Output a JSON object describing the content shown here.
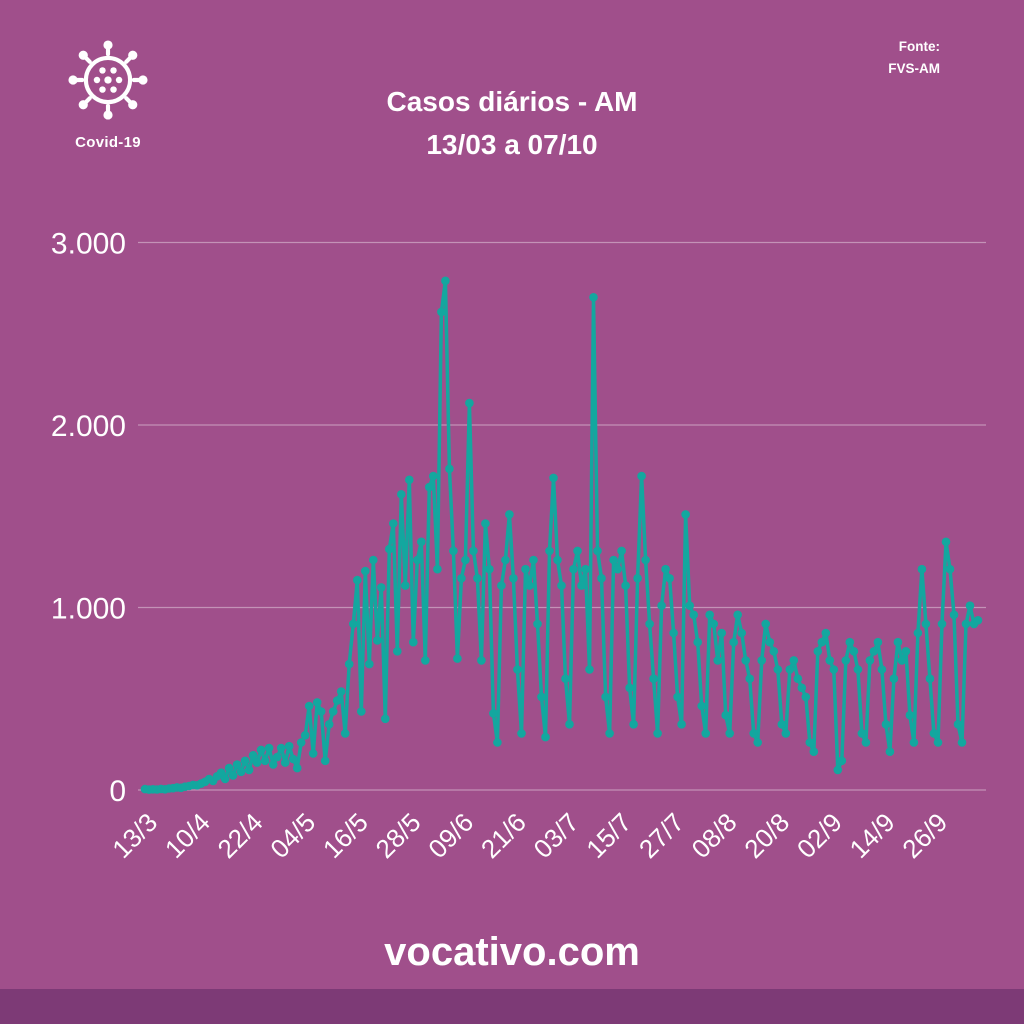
{
  "header": {
    "logo_label": "Covid-19",
    "title_line1": "Casos diários - AM",
    "title_line2": "13/03 a 07/10",
    "source_label": "Fonte:",
    "source_value": "FVS-AM"
  },
  "footer": {
    "site": "vocativo.com"
  },
  "colors": {
    "background": "#a04f8b",
    "footer_bar": "#7d3a76",
    "line": "#13a79f",
    "text": "#ffffff",
    "grid": "rgba(255,255,255,0.38)"
  },
  "chart_data": {
    "type": "line",
    "title": "Casos diários - AM",
    "subtitle": "13/03 a 07/10",
    "xlabel": "",
    "ylabel": "",
    "legend": "none",
    "grid": "horizontal",
    "period_start": "13/3",
    "period_end": "7/10",
    "ylim": [
      0,
      3000
    ],
    "y_ticks": [
      0,
      1000,
      2000,
      3000
    ],
    "y_tick_labels": [
      "0",
      "1.000",
      "2.000",
      "3.000"
    ],
    "x_tick_labels": [
      "13/3",
      "10/4",
      "22/4",
      "04/5",
      "16/5",
      "28/5",
      "09/6",
      "21/6",
      "03/7",
      "15/7",
      "27/7",
      "08/8",
      "20/8",
      "02/9",
      "14/9",
      "26/9"
    ],
    "x_tick_day_indices": [
      0,
      28,
      40,
      52,
      64,
      76,
      88,
      100,
      112,
      124,
      136,
      148,
      160,
      173,
      185,
      197
    ],
    "series_name": "Casos diários",
    "values": [
      5,
      2,
      4,
      3,
      6,
      4,
      8,
      10,
      14,
      12,
      18,
      22,
      28,
      26,
      35,
      45,
      60,
      50,
      75,
      95,
      60,
      120,
      80,
      140,
      100,
      160,
      110,
      190,
      150,
      220,
      160,
      230,
      140,
      180,
      230,
      150,
      240,
      170,
      120,
      260,
      300,
      460,
      200,
      480,
      430,
      160,
      360,
      430,
      490,
      540,
      310,
      690,
      910,
      1150,
      430,
      1200,
      690,
      1260,
      820,
      1110,
      390,
      1320,
      1460,
      760,
      1620,
      1120,
      1700,
      810,
      1260,
      1360,
      710,
      1660,
      1720,
      1210,
      2620,
      2790,
      1760,
      1310,
      720,
      1160,
      1260,
      2120,
      1310,
      1160,
      710,
      1460,
      1210,
      420,
      260,
      1120,
      1260,
      1510,
      1160,
      660,
      310,
      1210,
      1120,
      1260,
      910,
      510,
      290,
      1310,
      1710,
      1260,
      1120,
      610,
      360,
      1210,
      1310,
      1120,
      1210,
      660,
      2700,
      1310,
      1160,
      510,
      310,
      1260,
      1210,
      1310,
      1120,
      560,
      360,
      1160,
      1720,
      1260,
      910,
      610,
      310,
      1010,
      1210,
      1160,
      860,
      510,
      360,
      1510,
      1010,
      960,
      810,
      460,
      310,
      960,
      910,
      710,
      860,
      410,
      310,
      810,
      960,
      860,
      710,
      610,
      310,
      260,
      710,
      910,
      810,
      760,
      660,
      360,
      310,
      660,
      710,
      610,
      560,
      510,
      260,
      210,
      760,
      810,
      860,
      710,
      660,
      110,
      160,
      710,
      810,
      760,
      660,
      310,
      260,
      710,
      760,
      810,
      660,
      360,
      210,
      610,
      810,
      710,
      760,
      410,
      260,
      860,
      1210,
      910,
      610,
      310,
      260,
      910,
      1360,
      1210,
      960,
      360,
      260,
      910,
      1010,
      910,
      930
    ]
  }
}
